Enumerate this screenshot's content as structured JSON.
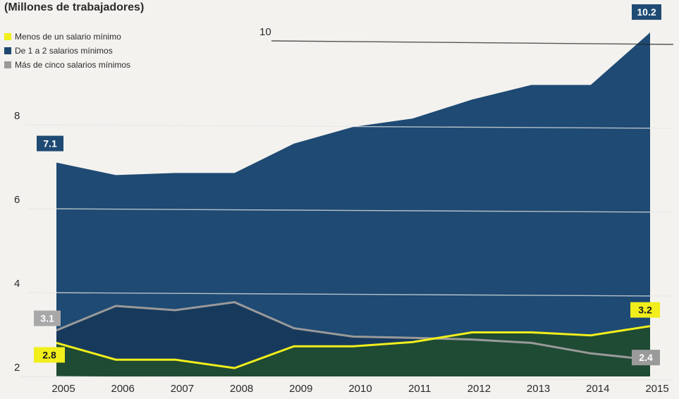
{
  "chart_data": {
    "type": "area",
    "subtitle": "(Millones de trabajadores)",
    "x": [
      2005,
      2006,
      2007,
      2008,
      2009,
      2010,
      2011,
      2012,
      2013,
      2014,
      2015
    ],
    "y_ticks": [
      2,
      4,
      6,
      8,
      10
    ],
    "ylim": [
      2,
      10.4
    ],
    "series": [
      {
        "name": "De 1 a 2 salarios mínimos",
        "color": "#1d4670",
        "values": [
          7.1,
          6.8,
          6.85,
          6.85,
          7.55,
          7.95,
          8.15,
          8.6,
          8.95,
          8.95,
          10.2
        ]
      },
      {
        "name": "Más de cinco salarios mínimos",
        "color": "#9a9a9a",
        "values": [
          3.1,
          3.68,
          3.58,
          3.77,
          3.15,
          2.95,
          2.92,
          2.88,
          2.8,
          2.55,
          2.4
        ]
      },
      {
        "name": "Menos de un salario mínimo",
        "color": "#f1ee1c",
        "values": [
          2.8,
          2.4,
          2.4,
          2.2,
          2.72,
          2.72,
          2.82,
          3.05,
          3.05,
          2.98,
          3.2
        ]
      }
    ],
    "value_labels": [
      {
        "text": "7.1",
        "series": 0,
        "index": 0
      },
      {
        "text": "10.2",
        "series": 0,
        "index": 10
      },
      {
        "text": "3.1",
        "series": 1,
        "index": 0
      },
      {
        "text": "2.4",
        "series": 1,
        "index": 10
      },
      {
        "text": "2.8",
        "series": 2,
        "index": 0
      },
      {
        "text": "3.2",
        "series": 2,
        "index": 10
      }
    ],
    "legend": [
      {
        "label": "Menos de un salario mínimo",
        "color": "#f1ee1c"
      },
      {
        "label": "De 1 a 2 salarios mínimos",
        "color": "#1d4670"
      },
      {
        "label": "Más de cinco salarios mínimos",
        "color": "#9a9a9a"
      }
    ]
  }
}
